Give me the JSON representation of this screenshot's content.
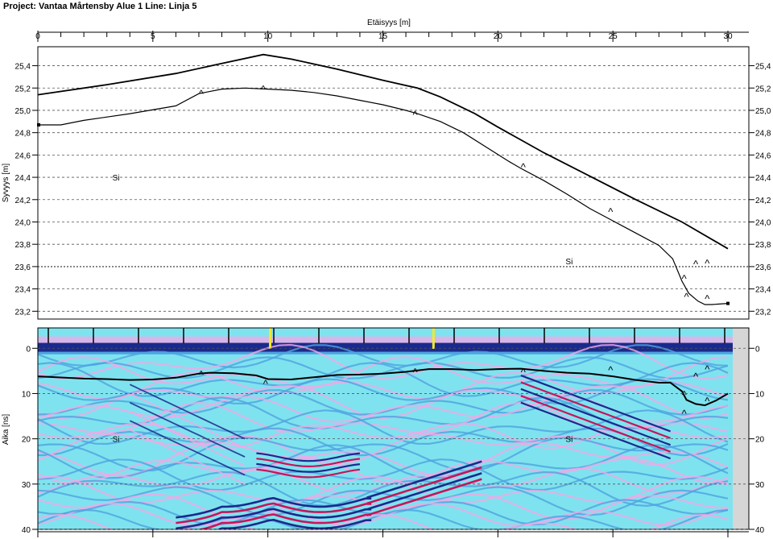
{
  "page_title": "Project: Vantaa Mårtensby Alue 1  Line: Linja 5",
  "chart_data": [
    {
      "type": "line",
      "xlabel": "Etäisyys [m]",
      "ylabel": "Syvyys [m]",
      "xlim": [
        0,
        30
      ],
      "ylim": [
        23.13,
        25.57
      ],
      "x_ticks": [
        0,
        5,
        10,
        15,
        20,
        25,
        30
      ],
      "y_ticks": [
        "25,4",
        "25,2",
        "25,0",
        "24,8",
        "24,6",
        "24,4",
        "24,2",
        "24,0",
        "23,8",
        "23,6",
        "23,4",
        "23,2"
      ],
      "y_tick_values": [
        25.4,
        25.2,
        25.0,
        24.8,
        24.6,
        24.4,
        24.2,
        24.0,
        23.8,
        23.6,
        23.4,
        23.2
      ],
      "grid": "dashed horizontal",
      "series": [
        {
          "x": [
            0,
            3,
            6,
            8,
            9.8,
            11,
            13,
            15,
            16.5,
            17.5,
            19,
            20,
            22,
            24,
            26,
            28,
            30
          ],
          "y": [
            25.14,
            25.23,
            25.33,
            25.42,
            25.5,
            25.46,
            25.37,
            25.27,
            25.2,
            25.12,
            24.97,
            24.85,
            24.62,
            24.41,
            24.2,
            24.0,
            23.76
          ]
        },
        {
          "x": [
            0,
            1,
            2,
            4,
            6,
            7,
            8,
            9,
            10,
            11,
            12,
            13,
            14,
            15,
            16,
            16.5,
            17.5,
            18.5,
            19.5,
            20.5,
            21,
            22,
            23,
            24,
            25,
            26,
            27,
            27.6,
            28,
            28.3,
            28.7,
            29,
            29.3,
            30
          ],
          "y": [
            24.87,
            24.87,
            24.91,
            24.97,
            25.04,
            25.15,
            25.19,
            25.2,
            25.19,
            25.18,
            25.16,
            25.13,
            25.09,
            25.05,
            25.0,
            24.97,
            24.9,
            24.8,
            24.67,
            24.54,
            24.48,
            24.37,
            24.25,
            24.12,
            24.01,
            23.9,
            23.79,
            23.67,
            23.47,
            23.36,
            23.29,
            23.26,
            23.26,
            23.27
          ]
        }
      ],
      "markers": [
        {
          "x": 7.1,
          "y": 25.16,
          "label": "^"
        },
        {
          "x": 9.8,
          "y": 25.2,
          "label": "^"
        },
        {
          "x": 16.4,
          "y": 24.97,
          "label": "^"
        },
        {
          "x": 21.1,
          "y": 24.5,
          "label": "^"
        },
        {
          "x": 24.9,
          "y": 24.1,
          "label": "^"
        },
        {
          "x": 28.1,
          "y": 23.5,
          "label": "^"
        },
        {
          "x": 28.2,
          "y": 23.34,
          "label": "^"
        },
        {
          "x": 28.6,
          "y": 23.63,
          "label": "^"
        },
        {
          "x": 29.1,
          "y": 23.64,
          "label": "^"
        },
        {
          "x": 29.1,
          "y": 23.32,
          "label": "^"
        }
      ],
      "annotations": [
        {
          "x": 3.4,
          "y": 24.4,
          "text": "Si"
        },
        {
          "x": 23.1,
          "y": 23.65,
          "text": "Si"
        }
      ]
    },
    {
      "type": "heatmap",
      "ylabel": "Aika [ns]",
      "xlim": [
        0,
        30
      ],
      "ylim": [
        40,
        -4.5
      ],
      "y_ticks": [
        "0",
        "10",
        "20",
        "30",
        "40"
      ],
      "y_tick_values": [
        0,
        10,
        20,
        30,
        40
      ],
      "colormap": [
        "#1a2a8c",
        "#4fa3e0",
        "#7de8f2",
        "#f4a6e6",
        "#c8145a"
      ],
      "interface_line": {
        "x": [
          0,
          0.8,
          2,
          3,
          4,
          5,
          6,
          7,
          7.5,
          8.5,
          9.5,
          10,
          11,
          12,
          13,
          14,
          15,
          16,
          17,
          18,
          19,
          20,
          21,
          22,
          23,
          24,
          25,
          26,
          27,
          27.5,
          28,
          28.2,
          28.6,
          29,
          29.5,
          30
        ],
        "y": [
          6.2,
          6.4,
          6.7,
          6.8,
          7.0,
          6.9,
          6.5,
          5.6,
          5.4,
          5.5,
          6.0,
          6.8,
          6.9,
          6.4,
          5.9,
          5.8,
          5.6,
          5.2,
          4.6,
          4.6,
          4.8,
          4.6,
          4.5,
          5.0,
          5.4,
          5.6,
          6.2,
          7.0,
          7.6,
          7.6,
          9.5,
          11.4,
          12.3,
          12.6,
          11.5,
          10.0
        ]
      },
      "markers": [
        {
          "x": 7.1,
          "y": 5.6,
          "label": "^"
        },
        {
          "x": 9.9,
          "y": 7.6,
          "label": "^"
        },
        {
          "x": 16.4,
          "y": 5.0,
          "label": "^"
        },
        {
          "x": 21.1,
          "y": 5.0,
          "label": "^"
        },
        {
          "x": 24.9,
          "y": 4.6,
          "label": "^"
        },
        {
          "x": 28.1,
          "y": 10.0,
          "label": "^"
        },
        {
          "x": 28.1,
          "y": 14.2,
          "label": "^"
        },
        {
          "x": 28.6,
          "y": 6.0,
          "label": "^"
        },
        {
          "x": 29.1,
          "y": 4.4,
          "label": "^"
        },
        {
          "x": 29.1,
          "y": 11.4,
          "label": "^"
        }
      ],
      "yellow_marks": [
        10.1,
        17.2
      ],
      "annotations": [
        {
          "x": 3.4,
          "y": 20.0,
          "text": "Si"
        },
        {
          "x": 23.1,
          "y": 20.0,
          "text": "Si"
        }
      ]
    }
  ]
}
